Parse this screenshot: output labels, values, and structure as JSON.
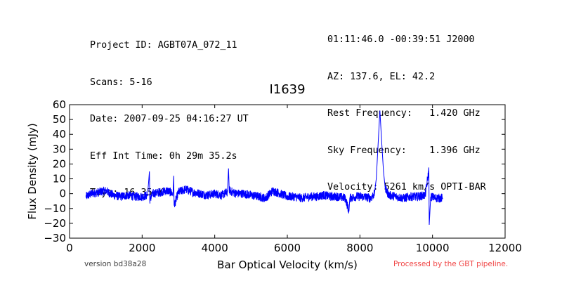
{
  "header": {
    "left_lines": [
      "Project ID: AGBT07A_072_11",
      "Scans: 5-16",
      "Date: 2007-09-25 04:16:27 UT",
      "Eff Int Time: 0h 29m 35.2s",
      "Tsys: 16.35 K"
    ],
    "right_lines": [
      "01:11:46.0 -00:39:51 J2000",
      "AZ: 137.6, EL: 42.2",
      "Rest Frequency:   1.420 GHz",
      "Sky Frequency:    1.396 GHz",
      "Velocity: 5261 km/s OPTI-BAR"
    ]
  },
  "footer": {
    "version": "version bd38a28",
    "pipeline": "Processed by the GBT pipeline."
  },
  "colors": {
    "series": "#0000ff",
    "pipeline_text": "#f04545"
  },
  "chart_data": {
    "type": "line",
    "title": "I1639",
    "xlabel": "Bar Optical Velocity (km/s)",
    "ylabel": "Flux Density (mJy)",
    "xlim": [
      0,
      12000
    ],
    "ylim": [
      -30,
      60
    ],
    "xticks": [
      0,
      2000,
      4000,
      6000,
      8000,
      10000,
      12000
    ],
    "yticks": [
      -30,
      -20,
      -10,
      0,
      10,
      20,
      30,
      40,
      50,
      60
    ],
    "grid": false,
    "legend": "none",
    "series": [
      {
        "values": [
          [
            450,
            -2
          ],
          [
            600,
            0
          ],
          [
            800,
            1
          ],
          [
            1000,
            2
          ],
          [
            1200,
            -1
          ],
          [
            1400,
            -2
          ],
          [
            1600,
            -1
          ],
          [
            1800,
            -2
          ],
          [
            2000,
            -2
          ],
          [
            2150,
            -1
          ],
          [
            2200,
            15
          ],
          [
            2210,
            -4
          ],
          [
            2300,
            0
          ],
          [
            2500,
            1
          ],
          [
            2700,
            2
          ],
          [
            2850,
            0
          ],
          [
            2870,
            12
          ],
          [
            2880,
            -8
          ],
          [
            3000,
            1
          ],
          [
            3200,
            3
          ],
          [
            3400,
            1
          ],
          [
            3600,
            0
          ],
          [
            3800,
            -1
          ],
          [
            4000,
            0
          ],
          [
            4200,
            -1
          ],
          [
            4350,
            1
          ],
          [
            4380,
            17
          ],
          [
            4400,
            2
          ],
          [
            4600,
            0
          ],
          [
            4800,
            0
          ],
          [
            5000,
            -1
          ],
          [
            5200,
            -2
          ],
          [
            5400,
            -3
          ],
          [
            5600,
            2
          ],
          [
            5800,
            0
          ],
          [
            6000,
            -2
          ],
          [
            6200,
            -2
          ],
          [
            6400,
            -3
          ],
          [
            6600,
            -2
          ],
          [
            6800,
            -2
          ],
          [
            7000,
            -1
          ],
          [
            7200,
            -2
          ],
          [
            7400,
            -2
          ],
          [
            7600,
            -3
          ],
          [
            7700,
            -12
          ],
          [
            7720,
            -3
          ],
          [
            7900,
            -2
          ],
          [
            8100,
            -2
          ],
          [
            8300,
            -3
          ],
          [
            8400,
            0
          ],
          [
            8450,
            10
          ],
          [
            8500,
            33
          ],
          [
            8550,
            56
          ],
          [
            8600,
            35
          ],
          [
            8650,
            15
          ],
          [
            8700,
            3
          ],
          [
            8800,
            -1
          ],
          [
            9000,
            -2
          ],
          [
            9200,
            -3
          ],
          [
            9400,
            -2
          ],
          [
            9600,
            -2
          ],
          [
            9800,
            -1
          ],
          [
            9900,
            16
          ],
          [
            9910,
            -21
          ],
          [
            9950,
            -2
          ],
          [
            10100,
            -3
          ],
          [
            10280,
            -3
          ]
        ]
      }
    ]
  }
}
